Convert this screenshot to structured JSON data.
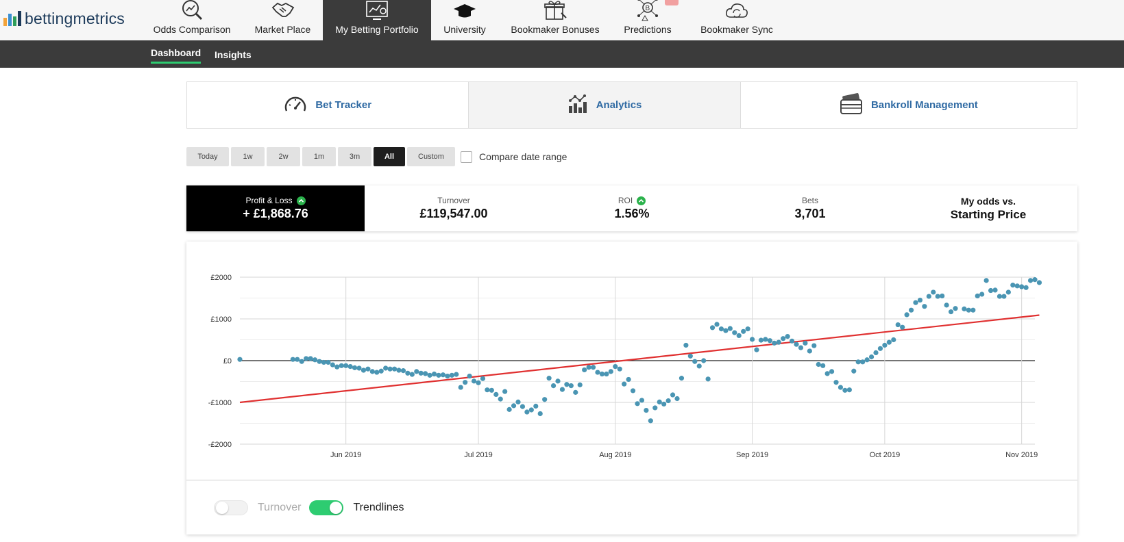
{
  "brand": {
    "name": "bettingmetrics",
    "bar_colors": [
      "#f2a33a",
      "#3b8fd0",
      "#2e9e5b",
      "#1c3a5a"
    ]
  },
  "nav": {
    "items": [
      {
        "label": "Odds Comparison",
        "icon": "magnifier-chart-icon"
      },
      {
        "label": "Market Place",
        "icon": "handshake-icon"
      },
      {
        "label": "My Betting Portfolio",
        "icon": "dashboard-chart-icon",
        "active": true
      },
      {
        "label": "University",
        "icon": "graduation-cap-icon"
      },
      {
        "label": "Bookmaker Bonuses",
        "icon": "gift-icon"
      },
      {
        "label": "Predictions",
        "icon": "network-bitcoin-icon"
      },
      {
        "label": "Bookmaker Sync",
        "icon": "cloud-sync-icon"
      }
    ]
  },
  "subnav": {
    "items": [
      {
        "label": "Dashboard",
        "active": true
      },
      {
        "label": "Insights"
      }
    ]
  },
  "subtabs": [
    {
      "label": "Bet Tracker",
      "icon": "speedometer-icon"
    },
    {
      "label": "Analytics",
      "icon": "analytics-icon",
      "active": true
    },
    {
      "label": "Bankroll Management",
      "icon": "wallet-card-icon"
    }
  ],
  "ranges": {
    "buttons": [
      {
        "label": "Today"
      },
      {
        "label": "1w"
      },
      {
        "label": "2w"
      },
      {
        "label": "1m"
      },
      {
        "label": "3m"
      },
      {
        "label": "All",
        "active": true
      },
      {
        "label": "Custom"
      }
    ],
    "compare_label": "Compare date range",
    "compare_checked": false
  },
  "stats": [
    {
      "label": "Profit & Loss",
      "value": "+ £1,868.76",
      "trend": "up",
      "active": true
    },
    {
      "label": "Turnover",
      "value": "£119,547.00"
    },
    {
      "label": "ROI",
      "value": "1.56%",
      "trend": "up"
    },
    {
      "label": "Bets",
      "value": "3,701"
    },
    {
      "label": "My odds vs.",
      "value": "Starting Price",
      "large_label": true
    }
  ],
  "toggles": {
    "turnover_label": "Turnover",
    "turnover_on": false,
    "trendlines_label": "Trendlines",
    "trendlines_on": true
  },
  "colors": {
    "accent_green": "#2ecc71",
    "link_blue": "#2f6aa3",
    "dot_color": "#4a95b3",
    "trend_color": "#e03030",
    "nav_dark": "#3b3b3b"
  },
  "chart_data": {
    "type": "scatter",
    "x_axis": "date",
    "x_ticks": [
      "Jun 2019",
      "Jul 2019",
      "Aug 2019",
      "Sep 2019",
      "Oct 2019",
      "Nov 2019"
    ],
    "y_ticks": [
      "£2000",
      "£1000",
      "£0",
      "-£1000",
      "-£2000"
    ],
    "ylim": [
      -2000,
      2000
    ],
    "xlim": [
      "2019-05-08",
      "2019-11-04"
    ],
    "grid": true,
    "series": [
      {
        "points": [
          [
            "2019-05-08",
            30
          ],
          [
            "2019-05-20",
            30
          ],
          [
            "2019-05-21",
            30
          ],
          [
            "2019-05-22",
            -20
          ],
          [
            "2019-05-23",
            50
          ],
          [
            "2019-05-24",
            50
          ],
          [
            "2019-05-25",
            20
          ],
          [
            "2019-05-26",
            -20
          ],
          [
            "2019-05-27",
            -40
          ],
          [
            "2019-05-28",
            -40
          ],
          [
            "2019-05-29",
            -100
          ],
          [
            "2019-05-30",
            -150
          ],
          [
            "2019-05-31",
            -120
          ],
          [
            "2019-06-01",
            -120
          ],
          [
            "2019-06-02",
            -140
          ],
          [
            "2019-06-03",
            -170
          ],
          [
            "2019-06-04",
            -180
          ],
          [
            "2019-06-05",
            -230
          ],
          [
            "2019-06-06",
            -200
          ],
          [
            "2019-06-07",
            -260
          ],
          [
            "2019-06-08",
            -280
          ],
          [
            "2019-06-09",
            -250
          ],
          [
            "2019-06-10",
            -180
          ],
          [
            "2019-06-11",
            -200
          ],
          [
            "2019-06-12",
            -200
          ],
          [
            "2019-06-13",
            -230
          ],
          [
            "2019-06-14",
            -240
          ],
          [
            "2019-06-15",
            -300
          ],
          [
            "2019-06-16",
            -330
          ],
          [
            "2019-06-17",
            -260
          ],
          [
            "2019-06-18",
            -300
          ],
          [
            "2019-06-19",
            -310
          ],
          [
            "2019-06-20",
            -350
          ],
          [
            "2019-06-21",
            -320
          ],
          [
            "2019-06-22",
            -350
          ],
          [
            "2019-06-23",
            -340
          ],
          [
            "2019-06-24",
            -370
          ],
          [
            "2019-06-25",
            -350
          ],
          [
            "2019-06-26",
            -330
          ],
          [
            "2019-06-27",
            -640
          ],
          [
            "2019-06-28",
            -520
          ],
          [
            "2019-06-29",
            -370
          ],
          [
            "2019-06-30",
            -490
          ],
          [
            "2019-07-01",
            -530
          ],
          [
            "2019-07-02",
            -430
          ],
          [
            "2019-07-03",
            -700
          ],
          [
            "2019-07-04",
            -710
          ],
          [
            "2019-07-05",
            -810
          ],
          [
            "2019-07-06",
            -920
          ],
          [
            "2019-07-07",
            -740
          ],
          [
            "2019-07-08",
            -1170
          ],
          [
            "2019-07-09",
            -1080
          ],
          [
            "2019-07-10",
            -990
          ],
          [
            "2019-07-11",
            -1100
          ],
          [
            "2019-07-12",
            -1230
          ],
          [
            "2019-07-13",
            -1180
          ],
          [
            "2019-07-14",
            -1090
          ],
          [
            "2019-07-15",
            -1270
          ],
          [
            "2019-07-16",
            -930
          ],
          [
            "2019-07-17",
            -420
          ],
          [
            "2019-07-18",
            -600
          ],
          [
            "2019-07-19",
            -490
          ],
          [
            "2019-07-20",
            -690
          ],
          [
            "2019-07-21",
            -570
          ],
          [
            "2019-07-22",
            -600
          ],
          [
            "2019-07-23",
            -760
          ],
          [
            "2019-07-24",
            -580
          ],
          [
            "2019-07-25",
            -220
          ],
          [
            "2019-07-26",
            -160
          ],
          [
            "2019-07-27",
            -160
          ],
          [
            "2019-07-28",
            -280
          ],
          [
            "2019-07-29",
            -320
          ],
          [
            "2019-07-30",
            -320
          ],
          [
            "2019-07-31",
            -260
          ],
          [
            "2019-08-01",
            -140
          ],
          [
            "2019-08-02",
            -200
          ],
          [
            "2019-08-03",
            -560
          ],
          [
            "2019-08-04",
            -450
          ],
          [
            "2019-08-05",
            -720
          ],
          [
            "2019-08-06",
            -1030
          ],
          [
            "2019-08-07",
            -950
          ],
          [
            "2019-08-08",
            -1190
          ],
          [
            "2019-08-09",
            -1440
          ],
          [
            "2019-08-10",
            -1130
          ],
          [
            "2019-08-11",
            -990
          ],
          [
            "2019-08-12",
            -1040
          ],
          [
            "2019-08-13",
            -960
          ],
          [
            "2019-08-14",
            -820
          ],
          [
            "2019-08-15",
            -910
          ],
          [
            "2019-08-16",
            -420
          ],
          [
            "2019-08-17",
            370
          ],
          [
            "2019-08-18",
            110
          ],
          [
            "2019-08-19",
            -20
          ],
          [
            "2019-08-20",
            -130
          ],
          [
            "2019-08-21",
            0
          ],
          [
            "2019-08-22",
            -440
          ],
          [
            "2019-08-23",
            790
          ],
          [
            "2019-08-24",
            870
          ],
          [
            "2019-08-25",
            760
          ],
          [
            "2019-08-26",
            720
          ],
          [
            "2019-08-27",
            770
          ],
          [
            "2019-08-28",
            670
          ],
          [
            "2019-08-29",
            600
          ],
          [
            "2019-08-30",
            700
          ],
          [
            "2019-08-31",
            760
          ],
          [
            "2019-09-01",
            510
          ],
          [
            "2019-09-02",
            260
          ],
          [
            "2019-09-03",
            490
          ],
          [
            "2019-09-04",
            510
          ],
          [
            "2019-09-05",
            480
          ],
          [
            "2019-09-06",
            420
          ],
          [
            "2019-09-07",
            440
          ],
          [
            "2019-09-08",
            530
          ],
          [
            "2019-09-09",
            580
          ],
          [
            "2019-09-10",
            470
          ],
          [
            "2019-09-11",
            390
          ],
          [
            "2019-09-12",
            310
          ],
          [
            "2019-09-13",
            420
          ],
          [
            "2019-09-14",
            230
          ],
          [
            "2019-09-15",
            360
          ],
          [
            "2019-09-16",
            -90
          ],
          [
            "2019-09-17",
            -120
          ],
          [
            "2019-09-18",
            -310
          ],
          [
            "2019-09-19",
            -260
          ],
          [
            "2019-09-20",
            -520
          ],
          [
            "2019-09-21",
            -640
          ],
          [
            "2019-09-22",
            -710
          ],
          [
            "2019-09-23",
            -700
          ],
          [
            "2019-09-24",
            -250
          ],
          [
            "2019-09-25",
            -30
          ],
          [
            "2019-09-26",
            -30
          ],
          [
            "2019-09-27",
            20
          ],
          [
            "2019-09-28",
            90
          ],
          [
            "2019-09-29",
            190
          ],
          [
            "2019-09-30",
            290
          ],
          [
            "2019-10-01",
            370
          ],
          [
            "2019-10-02",
            440
          ],
          [
            "2019-10-03",
            500
          ],
          [
            "2019-10-04",
            860
          ],
          [
            "2019-10-05",
            800
          ],
          [
            "2019-10-06",
            1100
          ],
          [
            "2019-10-07",
            1210
          ],
          [
            "2019-10-08",
            1390
          ],
          [
            "2019-10-09",
            1450
          ],
          [
            "2019-10-10",
            1300
          ],
          [
            "2019-10-11",
            1540
          ],
          [
            "2019-10-12",
            1640
          ],
          [
            "2019-10-13",
            1540
          ],
          [
            "2019-10-14",
            1550
          ],
          [
            "2019-10-15",
            1330
          ],
          [
            "2019-10-16",
            1170
          ],
          [
            "2019-10-17",
            1250
          ],
          [
            "2019-10-19",
            1240
          ],
          [
            "2019-10-20",
            1210
          ],
          [
            "2019-10-21",
            1210
          ],
          [
            "2019-10-22",
            1550
          ],
          [
            "2019-10-23",
            1590
          ],
          [
            "2019-10-24",
            1920
          ],
          [
            "2019-10-25",
            1680
          ],
          [
            "2019-10-26",
            1690
          ],
          [
            "2019-10-27",
            1540
          ],
          [
            "2019-10-28",
            1540
          ],
          [
            "2019-10-29",
            1640
          ],
          [
            "2019-10-30",
            1810
          ],
          [
            "2019-10-31",
            1790
          ],
          [
            "2019-11-01",
            1770
          ],
          [
            "2019-11-02",
            1750
          ],
          [
            "2019-11-03",
            1920
          ],
          [
            "2019-11-04",
            1940
          ],
          [
            "2019-11-05",
            1870
          ]
        ]
      }
    ],
    "trendline": {
      "start": [
        "2019-05-08",
        -1000
      ],
      "end": [
        "2019-11-05",
        1090
      ]
    }
  }
}
